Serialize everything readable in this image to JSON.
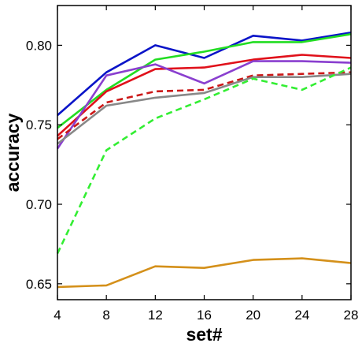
{
  "chart_data": {
    "type": "line",
    "title": "",
    "xlabel": "set#",
    "ylabel": "accuracy",
    "x": [
      4,
      8,
      12,
      16,
      20,
      24,
      28
    ],
    "xlim": [
      4,
      28
    ],
    "ylim": [
      0.64,
      0.825
    ],
    "xticks": [
      4,
      8,
      12,
      16,
      20,
      24,
      28
    ],
    "yticks": [
      0.65,
      0.7,
      0.75,
      0.8
    ],
    "ytick_labels": [
      "0.65",
      "0.70",
      "0.75",
      "0.80"
    ],
    "grid": false,
    "legend": "none",
    "series": [
      {
        "color": "#0a14c8",
        "dash": "solid",
        "values": [
          0.756,
          0.783,
          0.8,
          0.792,
          0.806,
          0.803,
          0.808
        ]
      },
      {
        "color": "#22dd22",
        "dash": "solid",
        "values": [
          0.748,
          0.772,
          0.791,
          0.796,
          0.802,
          0.802,
          0.807
        ]
      },
      {
        "color": "#e0101a",
        "dash": "solid",
        "values": [
          0.743,
          0.771,
          0.785,
          0.786,
          0.791,
          0.794,
          0.792
        ]
      },
      {
        "color": "#8a3fcf",
        "dash": "solid",
        "values": [
          0.735,
          0.781,
          0.788,
          0.776,
          0.79,
          0.79,
          0.789
        ]
      },
      {
        "color": "#cc1818",
        "dash": "dashed",
        "values": [
          0.741,
          0.764,
          0.771,
          0.772,
          0.781,
          0.782,
          0.783
        ]
      },
      {
        "color": "#888888",
        "dash": "solid",
        "values": [
          0.738,
          0.762,
          0.767,
          0.77,
          0.78,
          0.78,
          0.782
        ]
      },
      {
        "color": "#33ee33",
        "dash": "dashed",
        "values": [
          0.669,
          0.734,
          0.754,
          0.766,
          0.779,
          0.772,
          0.786
        ]
      },
      {
        "color": "#d4901a",
        "dash": "solid",
        "values": [
          0.648,
          0.649,
          0.661,
          0.66,
          0.665,
          0.666,
          0.663
        ]
      }
    ]
  }
}
